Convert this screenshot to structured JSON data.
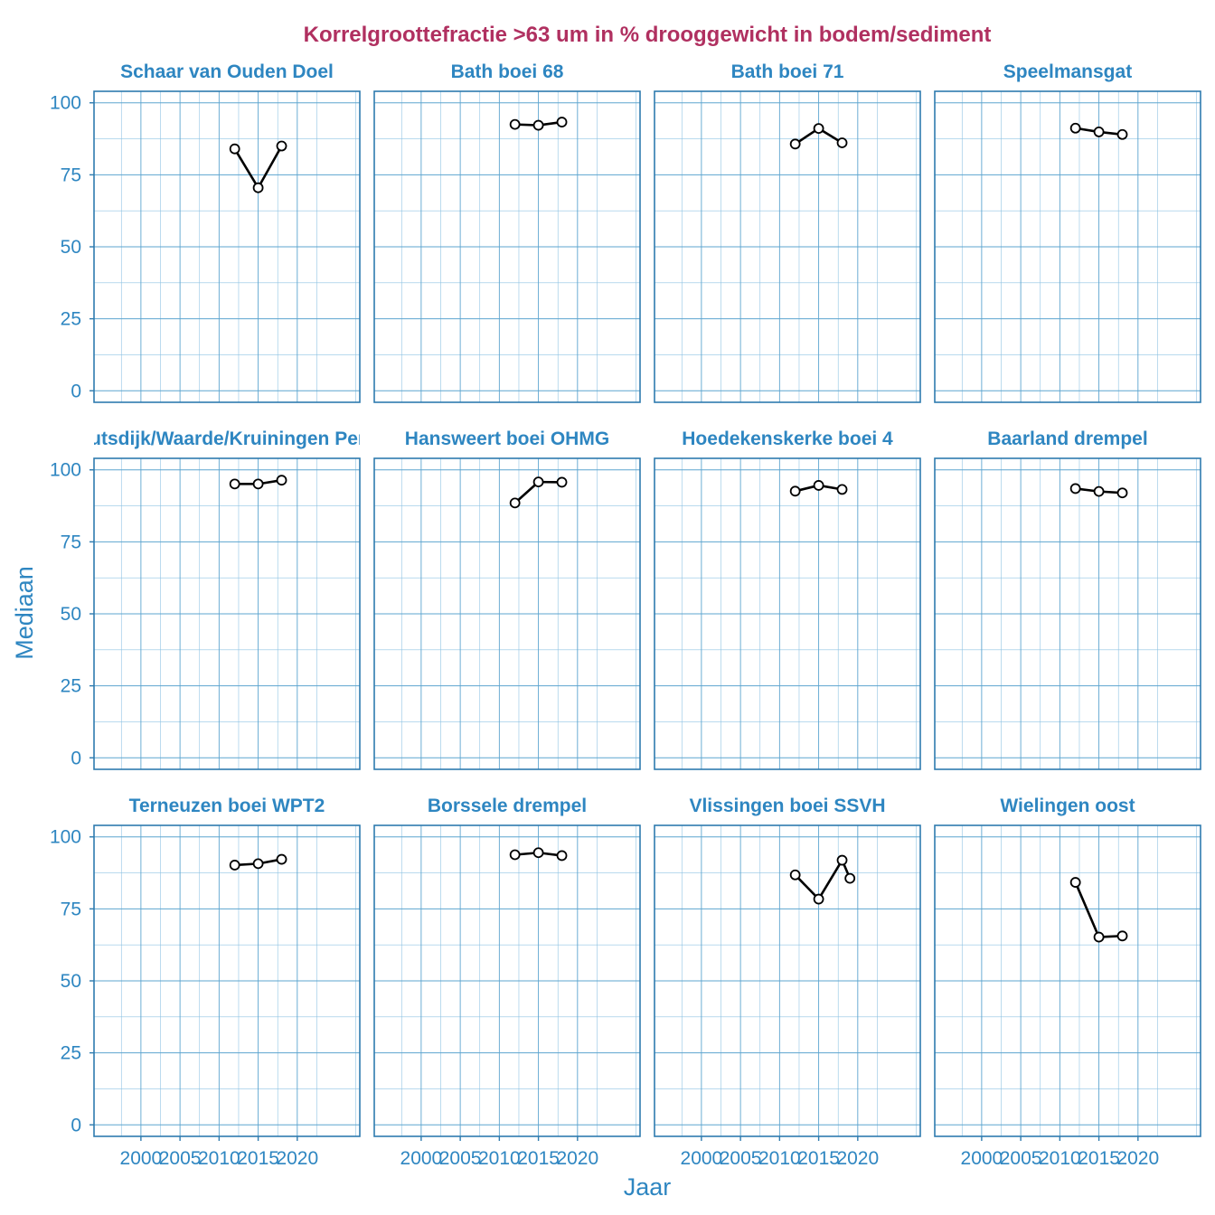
{
  "chart_data": {
    "type": "line",
    "title": "Korrelgroottefractie >63 um in % drooggewicht in bodem/sediment",
    "xlabel": "Jaar",
    "ylabel": "Mediaan",
    "xlim": [
      1994,
      2028
    ],
    "ylim": [
      -4,
      104
    ],
    "x_ticks": [
      2000,
      2005,
      2010,
      2015,
      2020
    ],
    "x_tick_labels": [
      "2000",
      "2005",
      "2010",
      "2015",
      "2020"
    ],
    "y_ticks": [
      0,
      25,
      50,
      75,
      100
    ],
    "y_tick_labels": [
      "0",
      "25",
      "50",
      "75",
      "100"
    ],
    "grid": true,
    "panels": [
      {
        "name": "Schaar van Ouden Doel",
        "x": [
          2012,
          2015,
          2018
        ],
        "values": [
          84,
          70.5,
          85
        ]
      },
      {
        "name": "Bath boei 68",
        "x": [
          2012,
          2015,
          2018
        ],
        "values": [
          92.5,
          92.2,
          93.3
        ]
      },
      {
        "name": "Bath boei 71",
        "x": [
          2012,
          2015,
          2018
        ],
        "values": [
          85.7,
          91.1,
          86.1
        ]
      },
      {
        "name": "Speelmansgat",
        "x": [
          2012,
          2015,
          2018
        ],
        "values": [
          91.2,
          89.9,
          89
        ]
      },
      {
        "name": "Hansweert boei OHMG",
        "x": [
          2012,
          2015,
          2018
        ],
        "values": [
          88.5,
          95.8,
          95.7
        ]
      },
      {
        "name": "Hoedekenskerke boei 4",
        "x": [
          2012,
          2015,
          2018
        ],
        "values": [
          92.6,
          94.6,
          93.2
        ]
      },
      {
        "name": "Baarland drempel",
        "x": [
          2012,
          2015,
          2018
        ],
        "values": [
          93.5,
          92.5,
          92
        ]
      },
      {
        "name": "Terneuzen boei WPT2",
        "x": [
          2012,
          2015,
          2018
        ],
        "values": [
          90.2,
          90.7,
          92.2
        ]
      },
      {
        "name": "Borssele drempel",
        "x": [
          2012,
          2015,
          2018
        ],
        "values": [
          93.8,
          94.5,
          93.5
        ]
      },
      {
        "name": "Vlissingen boei SSVH",
        "x": [
          2012,
          2015,
          2018,
          2019
        ],
        "values": [
          86.8,
          78.4,
          91.9,
          85.6
        ]
      },
      {
        "name": "Wielingen oost",
        "x": [
          2012,
          2015,
          2018
        ],
        "values": [
          84.2,
          65.2,
          65.6
        ]
      },
      {
        "name": "Hansweert/Ellewoutsdijk/Waarde/Kruiningen Perkpolder (drempel)",
        "x": [
          2012,
          2015,
          2018
        ],
        "values": [
          95.1,
          95.1,
          96.4
        ]
      }
    ]
  }
}
